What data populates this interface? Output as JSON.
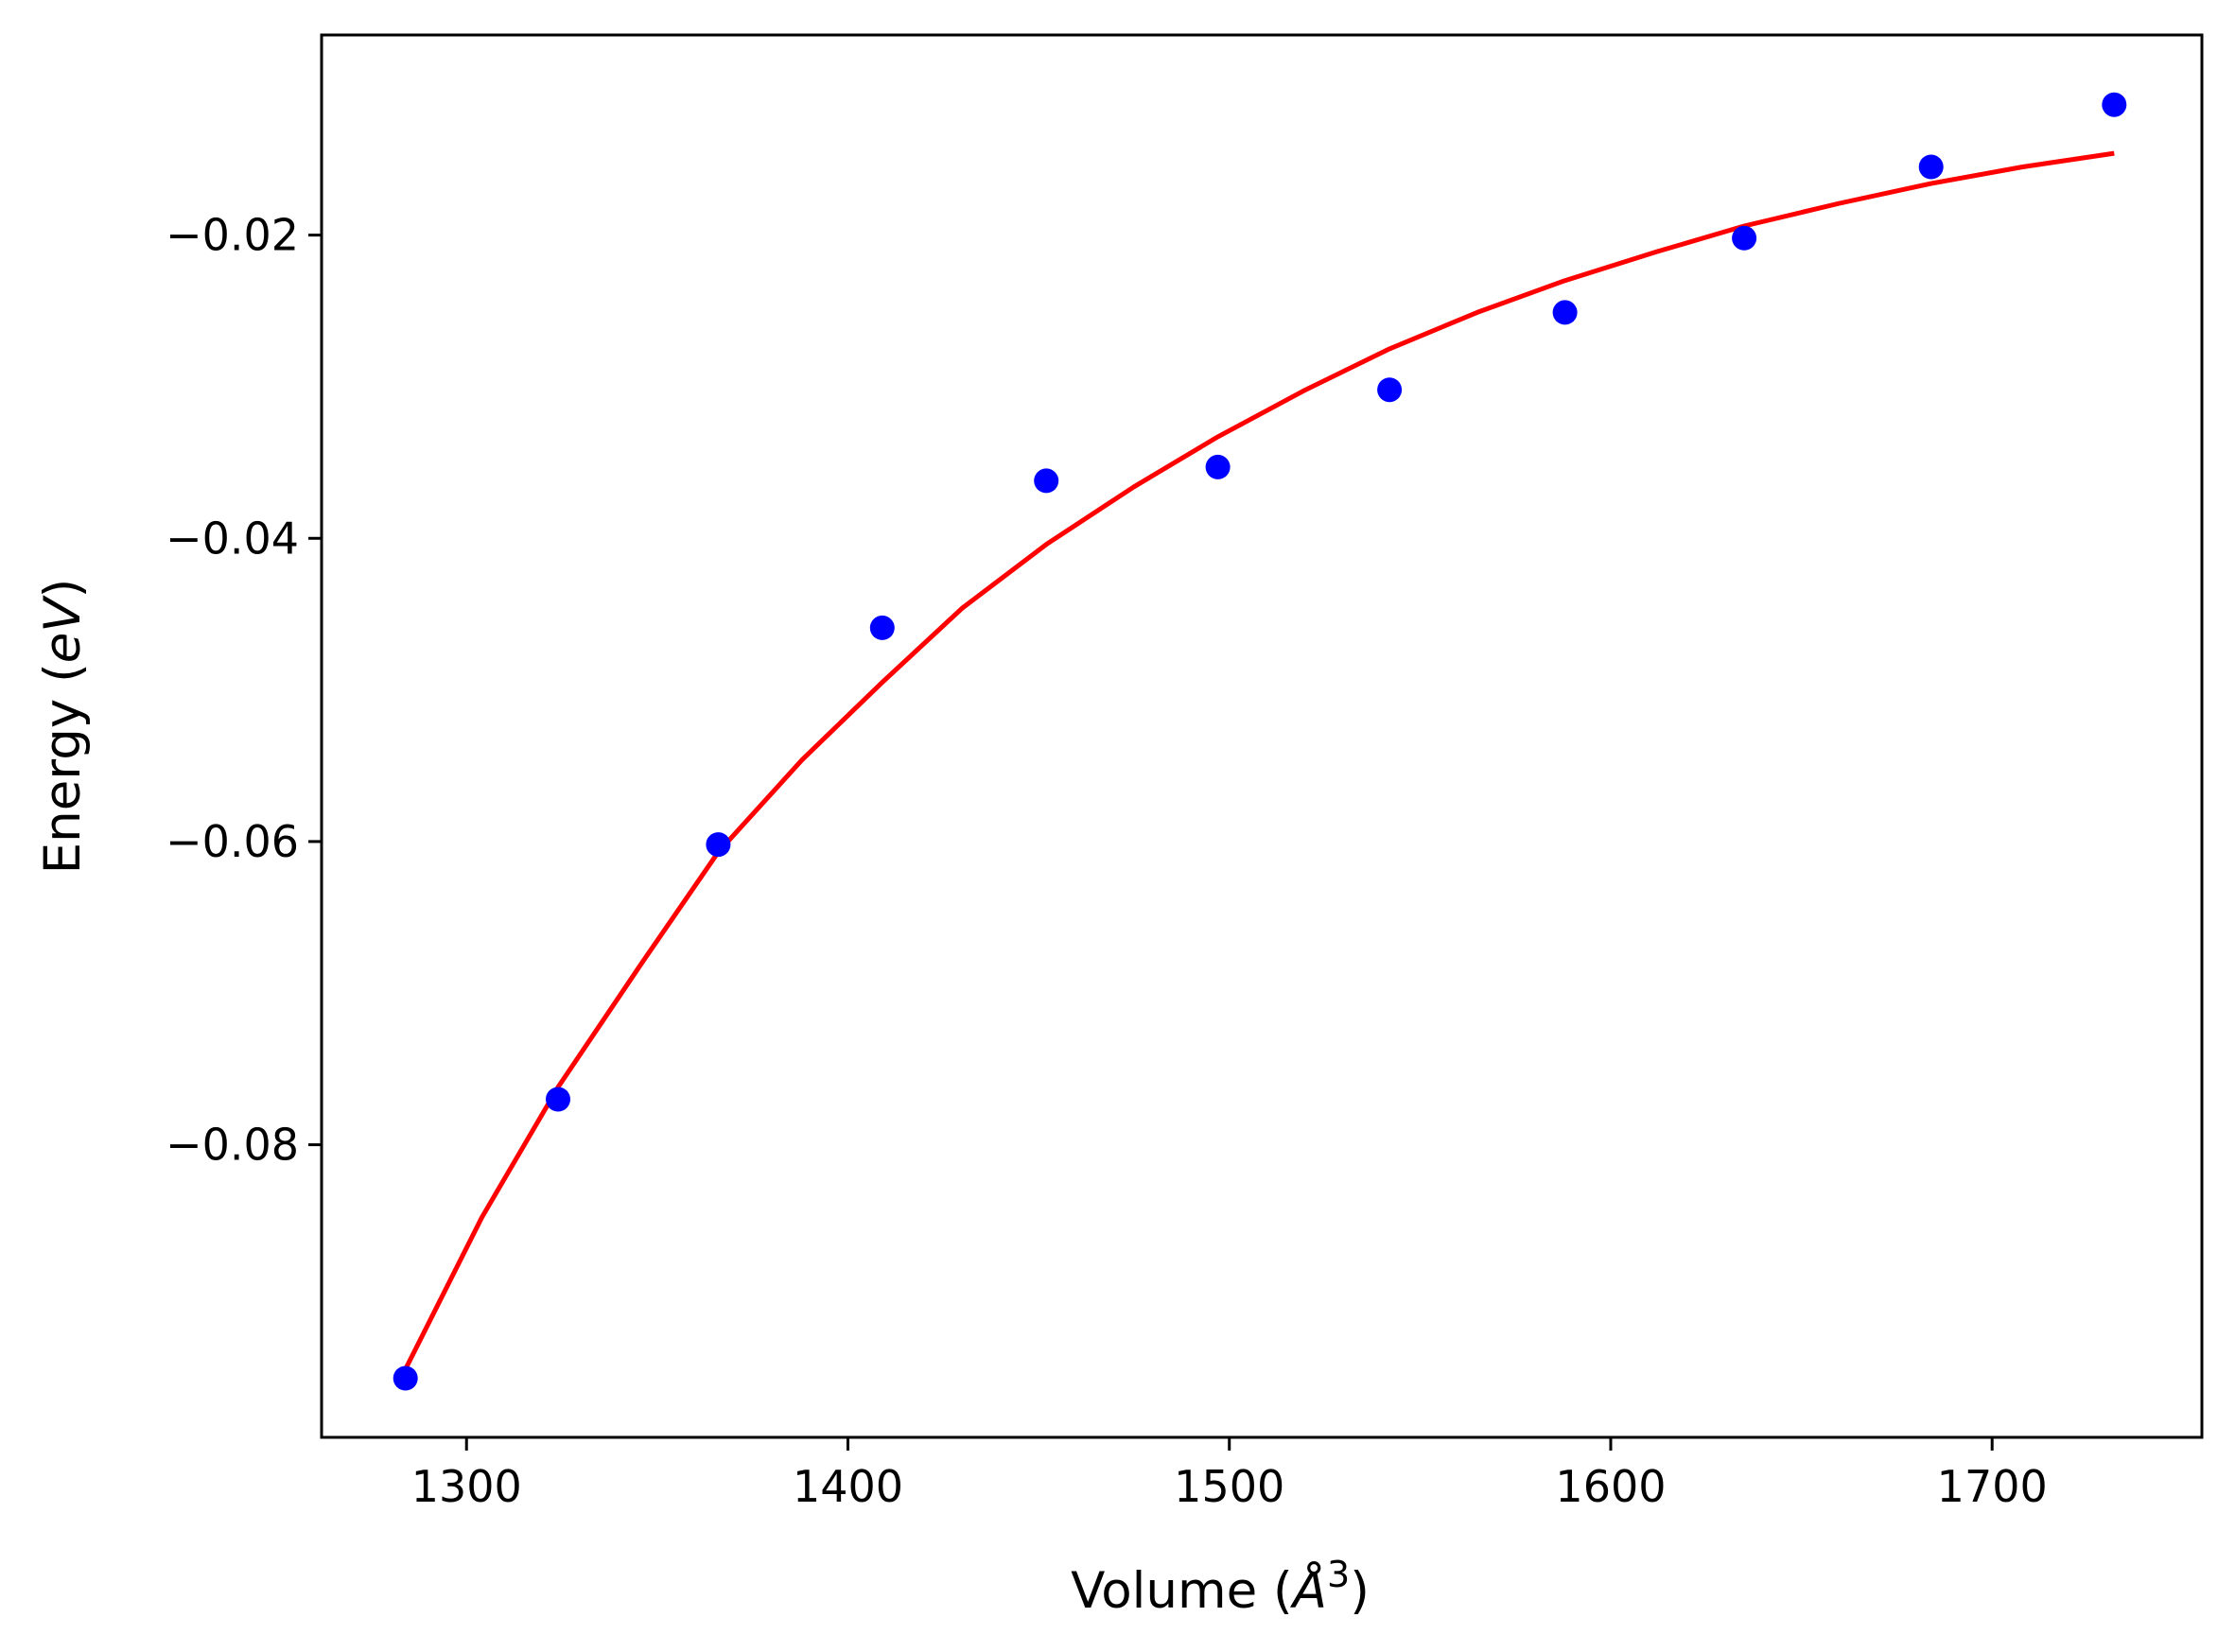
{
  "chart_data": {
    "type": "scatter",
    "xlabel": "Volume (Å³)",
    "xlabel_parts": {
      "prefix": "Volume (",
      "italic": "Å",
      "sup": "3",
      "suffix": ")"
    },
    "ylabel": "Energy (eV)",
    "ylabel_parts": {
      "prefix": "Energy (",
      "italic": "eV",
      "suffix": ")"
    },
    "xlim": [
      1262,
      1755
    ],
    "ylim": [
      -0.0993,
      -0.0068
    ],
    "grid": false,
    "x_ticks": [
      {
        "value": 1300,
        "label": "1300"
      },
      {
        "value": 1400,
        "label": "1400"
      },
      {
        "value": 1500,
        "label": "1500"
      },
      {
        "value": 1600,
        "label": "1600"
      },
      {
        "value": 1700,
        "label": "1700"
      }
    ],
    "y_ticks": [
      {
        "value": -0.02,
        "label": "−0.02"
      },
      {
        "value": -0.04,
        "label": "−0.04"
      },
      {
        "value": -0.06,
        "label": "−0.06"
      },
      {
        "value": -0.08,
        "label": "−0.08"
      }
    ],
    "series": [
      {
        "kind": "points",
        "color": "#0000ff",
        "x": [
          1284,
          1324,
          1366,
          1409,
          1452,
          1497,
          1542,
          1588,
          1635,
          1684,
          1732
        ],
        "y": [
          -0.0954,
          -0.077,
          -0.0602,
          -0.0459,
          -0.0362,
          -0.0353,
          -0.0302,
          -0.0251,
          -0.0202,
          -0.0155,
          -0.0114
        ]
      },
      {
        "kind": "fit-line",
        "color": "#ff0000",
        "x": [
          1284,
          1304,
          1324,
          1346,
          1366,
          1388,
          1409,
          1430,
          1452,
          1475,
          1497,
          1520,
          1542,
          1565,
          1588,
          1612,
          1635,
          1660,
          1684,
          1708,
          1732
        ],
        "y": [
          -0.0948,
          -0.0848,
          -0.0762,
          -0.068,
          -0.0607,
          -0.0546,
          -0.0495,
          -0.0446,
          -0.0404,
          -0.0366,
          -0.0333,
          -0.0302,
          -0.0275,
          -0.0251,
          -0.023,
          -0.0211,
          -0.0194,
          -0.0179,
          -0.0166,
          -0.0155,
          -0.0146
        ]
      }
    ]
  }
}
